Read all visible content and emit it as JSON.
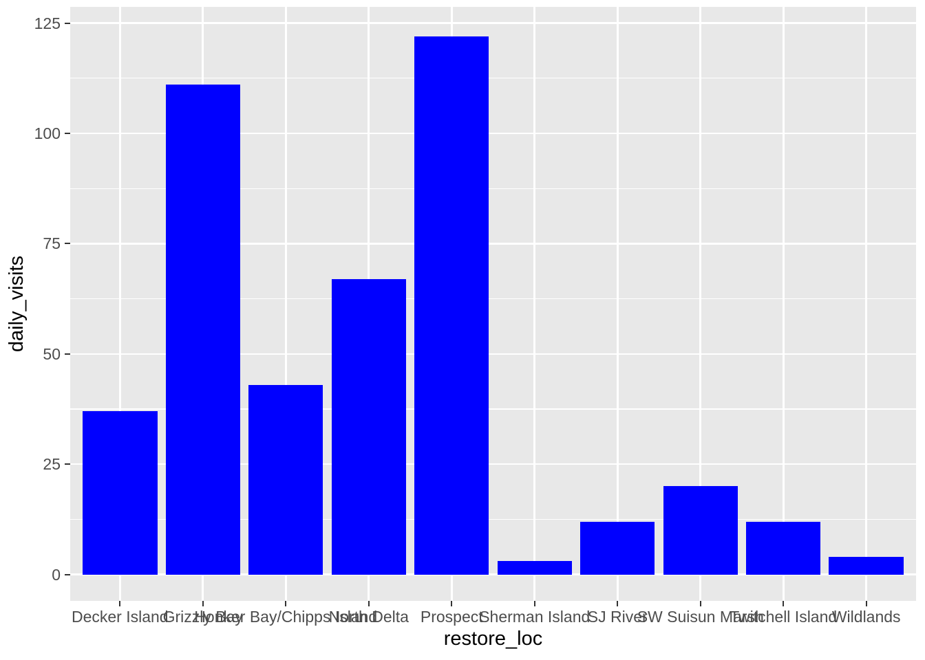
{
  "chart_data": {
    "type": "bar",
    "title": "",
    "xlabel": "restore_loc",
    "ylabel": "daily_visits",
    "categories": [
      "Decker Island",
      "Grizzly Bay",
      "Honker Bay/Chipps Island",
      "North Delta",
      "Prospect",
      "Sherman Island",
      "SJ River",
      "SW Suisun Marsh",
      "Twitchell Island",
      "Wildlands"
    ],
    "values": [
      37,
      111,
      43,
      67,
      122,
      3,
      12,
      20,
      12,
      4
    ],
    "ylim": [
      0,
      125
    ],
    "yticks": [
      0,
      25,
      50,
      75,
      100,
      125
    ],
    "ytick_labels": [
      "0",
      "25",
      "50",
      "75",
      "100",
      "125"
    ],
    "minor_yticks": [
      12.5,
      37.5,
      62.5,
      87.5,
      112.5
    ],
    "grid": "on",
    "legend_position": "none",
    "colors": {
      "bar": "#0000FF",
      "panel_background": "#E8E8E8",
      "gridline": "#FFFFFF",
      "tick_mark": "#333333",
      "tick_label": "#4D4D4D",
      "axis_title": "#000000",
      "figure_background": "#FFFFFF"
    }
  }
}
